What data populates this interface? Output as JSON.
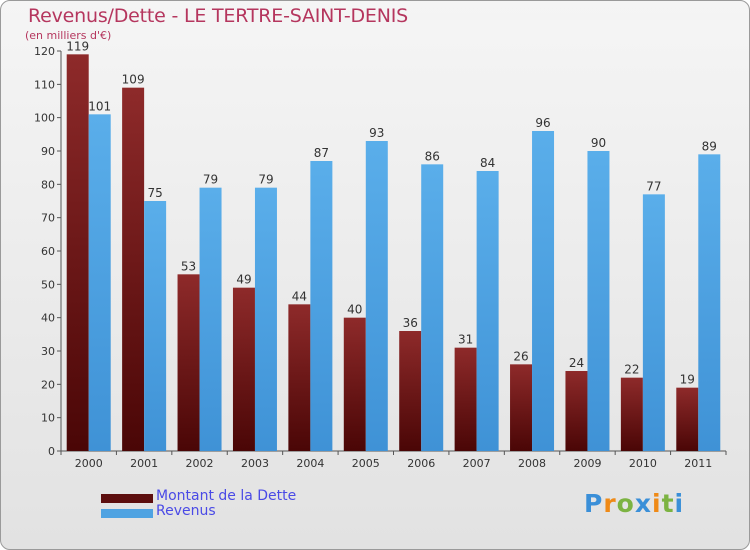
{
  "chart_data": {
    "type": "bar",
    "title": "Revenus/Dette - LE TERTRE-SAINT-DENIS",
    "subtitle": "(en milliers d'€)",
    "categories": [
      "2000",
      "2001",
      "2002",
      "2003",
      "2004",
      "2005",
      "2006",
      "2007",
      "2008",
      "2009",
      "2010",
      "2011"
    ],
    "series": [
      {
        "name": "Montant de la Dette",
        "color": "#7a1c1c",
        "values": [
          119,
          109,
          53,
          49,
          44,
          40,
          36,
          31,
          26,
          24,
          22,
          19
        ]
      },
      {
        "name": "Revenus",
        "color": "#4fa3e2",
        "values": [
          101,
          75,
          79,
          79,
          87,
          93,
          86,
          84,
          96,
          90,
          77,
          89
        ]
      }
    ],
    "ylim": [
      0,
      120
    ],
    "yticks": [
      0,
      10,
      20,
      30,
      40,
      50,
      60,
      70,
      80,
      90,
      100,
      110,
      120
    ],
    "grid": false,
    "legend_position": "bottom-left"
  },
  "logo_text": "Proxiti"
}
